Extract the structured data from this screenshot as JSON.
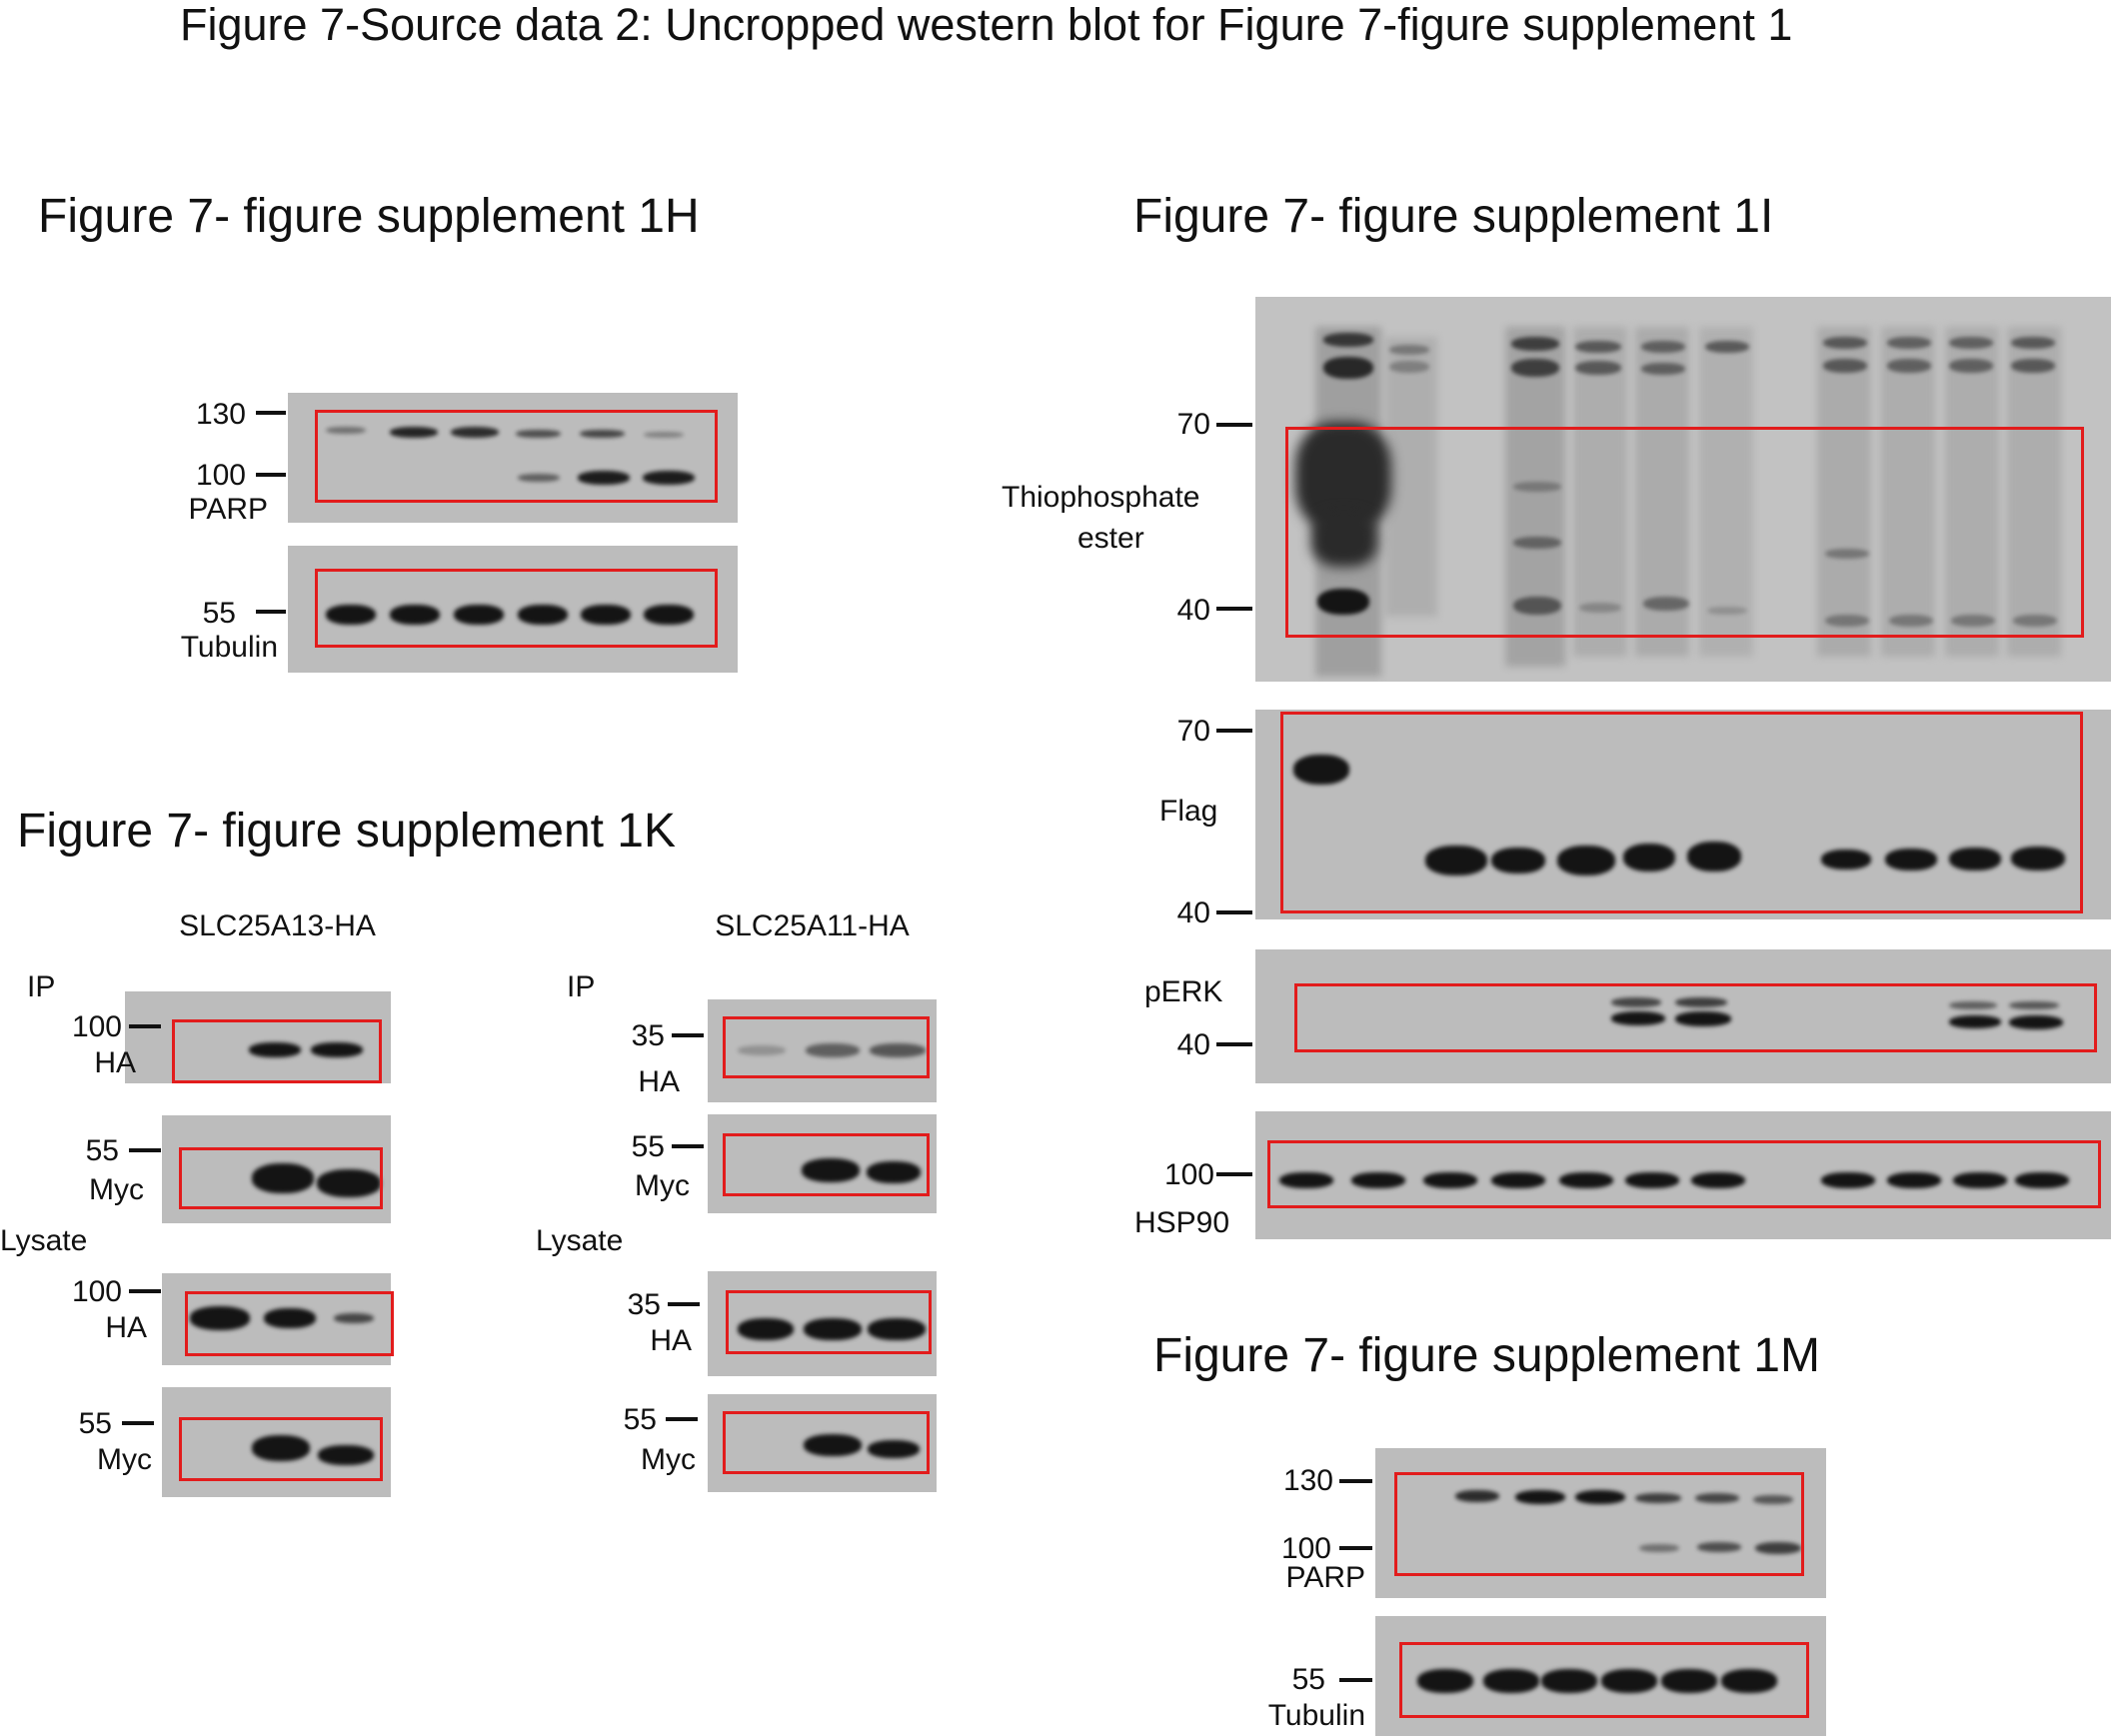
{
  "page_title": "Figure 7-Source data 2: Uncropped western blot for Figure 7-figure  supplement 1",
  "panels": {
    "h": {
      "title": "Figure 7- figure supplement 1H",
      "markers": [
        "130",
        "100",
        "55"
      ],
      "labels": [
        "PARP",
        "Tubulin"
      ]
    },
    "k": {
      "title": "Figure 7- figure supplement 1K",
      "left_header": "SLC25A13-HA",
      "right_header": "SLC25A11-HA",
      "ip_label": "IP",
      "lysate_label": "Lysate",
      "left_markers": [
        "100",
        "55",
        "100",
        "55"
      ],
      "right_markers": [
        "35",
        "55",
        "35",
        "55"
      ],
      "row_labels": [
        "HA",
        "Myc",
        "HA",
        "Myc"
      ]
    },
    "i": {
      "title": "Figure 7- figure supplement 1I",
      "markers": [
        "70",
        "40",
        "70",
        "40",
        "40",
        "100"
      ],
      "labels": [
        "Thiophosphate",
        "ester",
        "Flag",
        "pERK",
        "HSP90"
      ]
    },
    "m": {
      "title": "Figure 7- figure supplement 1M",
      "markers": [
        "130",
        "100",
        "55"
      ],
      "labels": [
        "PARP",
        "Tubulin"
      ]
    }
  },
  "colors": {
    "crop_box": "#e21c1c",
    "membrane": "#bcbcbc",
    "band": "#141414"
  }
}
